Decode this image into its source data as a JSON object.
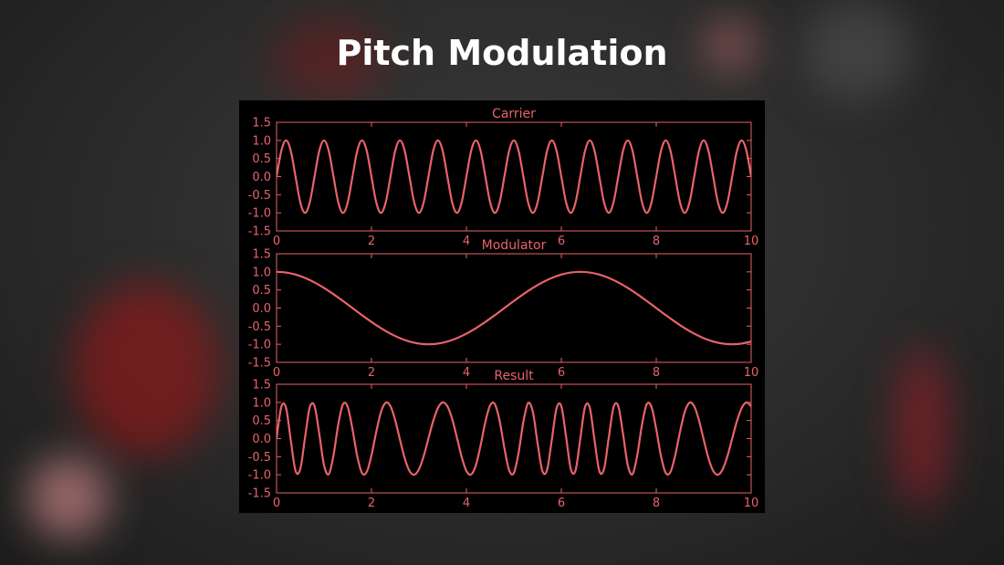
{
  "title": "Pitch Modulation",
  "chart_data": [
    {
      "type": "line",
      "title": "Carrier",
      "x": [
        0,
        0.1,
        0.2,
        0.3,
        0.4,
        0.5,
        0.6,
        0.7,
        0.8,
        0.9,
        1,
        1.1,
        1.2,
        1.3,
        1.4,
        1.5,
        1.6,
        1.7,
        1.8,
        1.9,
        2,
        2.1,
        2.2,
        2.3,
        2.4,
        2.5,
        2.6,
        2.7,
        2.8,
        2.9,
        3,
        3.1,
        3.2,
        3.3,
        3.4,
        3.5,
        3.6,
        3.7,
        3.8,
        3.9,
        4,
        4.1,
        4.2,
        4.3,
        4.4,
        4.5,
        4.6,
        4.7,
        4.8,
        4.9,
        5,
        5.1,
        5.2,
        5.3,
        5.4,
        5.5,
        5.6,
        5.7,
        5.8,
        5.9,
        6,
        6.1,
        6.2,
        6.3,
        6.4,
        6.5,
        6.6,
        6.7,
        6.8,
        6.9,
        7,
        7.1,
        7.2,
        7.3,
        7.4,
        7.5,
        7.6,
        7.7,
        7.8,
        7.9,
        8,
        8.1,
        8.2,
        8.3,
        8.4,
        8.5,
        8.6,
        8.7,
        8.8,
        8.9,
        9,
        9.1,
        9.2,
        9.3,
        9.4,
        9.5,
        9.6,
        9.7,
        9.8,
        9.9,
        10
      ],
      "series": [
        {
          "color": "#e8636a",
          "values": [
            0,
            0.71,
            1,
            0.71,
            0,
            -0.71,
            -1,
            -0.71,
            0,
            0.71,
            1,
            0.71,
            0,
            -0.71,
            -1,
            -0.71,
            0,
            0.71,
            1,
            0.71,
            0,
            -0.71,
            -1,
            -0.71,
            0,
            0.71,
            1,
            0.71,
            0,
            -0.71,
            -1,
            -0.71,
            0,
            0.71,
            1,
            0.71,
            0,
            -0.71,
            -1,
            -0.71,
            0,
            0.71,
            1,
            0.71,
            0,
            -0.71,
            -1,
            -0.71,
            0,
            0.71,
            1,
            0.71,
            0,
            -0.71,
            -1,
            -0.71,
            0,
            0.71,
            1,
            0.71,
            0,
            -0.71,
            -1,
            -0.71,
            0,
            0.71,
            1,
            0.71,
            0,
            -0.71,
            -1,
            -0.71,
            0,
            0.71,
            1,
            0.71,
            0,
            -0.71,
            -1,
            -0.71,
            0,
            0.71,
            1,
            0.71,
            0,
            -0.71,
            -1,
            -0.71,
            0,
            0.71,
            1,
            0.71,
            0,
            -0.71,
            -1,
            -0.71,
            0,
            0.71,
            1,
            0.71,
            0
          ]
        }
      ],
      "xlim": [
        0,
        10
      ],
      "ylim": [
        -1.5,
        1.5
      ],
      "xticks": [
        0,
        2,
        4,
        6,
        8,
        10
      ],
      "yticks": [
        -1.5,
        {
          "value": -1,
          "label": "-1.0"
        },
        -0.5,
        {
          "value": 0,
          "label": "0.0"
        },
        0.5,
        {
          "value": 1,
          "label": "1.0"
        },
        1.5
      ]
    },
    {
      "type": "line",
      "title": "Modulator",
      "x": [
        0,
        0.2,
        0.4,
        0.6,
        0.8,
        1,
        1.2,
        1.4,
        1.6,
        1.8,
        2,
        2.2,
        2.4,
        2.6,
        2.8,
        3,
        3.2,
        3.4,
        3.6,
        3.8,
        4,
        4.2,
        4.4,
        4.6,
        4.8,
        5,
        5.2,
        5.4,
        5.6,
        5.8,
        6,
        6.2,
        6.4,
        6.6,
        6.8,
        7,
        7.2,
        7.4,
        7.6,
        7.8,
        8,
        8.2,
        8.4,
        8.6,
        8.8,
        9,
        9.2,
        9.4,
        9.6,
        9.8,
        10
      ],
      "series": [
        {
          "color": "#e8636a",
          "values": [
            1,
            0.981,
            0.924,
            0.831,
            0.707,
            0.556,
            0.383,
            0.195,
            0,
            -0.195,
            -0.383,
            -0.556,
            -0.707,
            -0.831,
            -0.924,
            -0.981,
            -1,
            -0.981,
            -0.924,
            -0.831,
            -0.707,
            -0.556,
            -0.383,
            -0.195,
            0,
            0.195,
            0.383,
            0.556,
            0.707,
            0.831,
            0.924,
            0.981,
            1,
            0.981,
            0.924,
            0.831,
            0.707,
            0.556,
            0.383,
            0.195,
            0,
            -0.195,
            -0.383,
            -0.556,
            -0.707,
            -0.831,
            -0.924,
            -0.981,
            -1,
            -0.981,
            -0.924
          ]
        }
      ],
      "xlim": [
        0,
        10
      ],
      "ylim": [
        -1.5,
        1.5
      ],
      "xticks": [
        0,
        2,
        4,
        6,
        8,
        10
      ],
      "yticks": [
        -1.5,
        {
          "value": -1,
          "label": "-1.0"
        },
        -0.5,
        {
          "value": 0,
          "label": "0.0"
        },
        0.5,
        {
          "value": 1,
          "label": "1.0"
        },
        1.5
      ]
    },
    {
      "type": "line",
      "title": "Result",
      "x": [
        0,
        0.1,
        0.2,
        0.3,
        0.4,
        0.5,
        0.6,
        0.7,
        0.8,
        0.9,
        1,
        1.1,
        1.2,
        1.3,
        1.4,
        1.5,
        1.6,
        1.7,
        1.8,
        1.9,
        2,
        2.1,
        2.2,
        2.3,
        2.4,
        2.5,
        2.6,
        2.7,
        2.8,
        2.9,
        3,
        3.1,
        3.2,
        3.3,
        3.4,
        3.5,
        3.6,
        3.7,
        3.8,
        3.9,
        4,
        4.1,
        4.2,
        4.3,
        4.4,
        4.5,
        4.6,
        4.7,
        4.8,
        4.9,
        5,
        5.1,
        5.2,
        5.3,
        5.4,
        5.5,
        5.6,
        5.7,
        5.8,
        5.9,
        6,
        6.1,
        6.2,
        6.3,
        6.4,
        6.5,
        6.6,
        6.7,
        6.8,
        6.9,
        7,
        7.1,
        7.2,
        7.3,
        7.4,
        7.5,
        7.6,
        7.7,
        7.8,
        7.9,
        8,
        8.1,
        8.2,
        8.3,
        8.4,
        8.5,
        8.6,
        8.7,
        8.8,
        8.9,
        9,
        9.1,
        9.2,
        9.3,
        9.4,
        9.5,
        9.6,
        9.7,
        9.8,
        9.9,
        10
      ],
      "series": [
        {
          "color": "#e8636a",
          "values": [
            0,
            0.876,
            0.846,
            -0.05,
            -0.892,
            -0.841,
            0.029,
            0.864,
            0.894,
            0.13,
            -0.734,
            -0.983,
            -0.461,
            0.389,
            0.95,
            0.873,
            0.259,
            -0.487,
            -0.95,
            -0.921,
            -0.461,
            0.183,
            0.734,
            0.992,
            0.894,
            0.507,
            -0.029,
            -0.541,
            -0.892,
            -0.999,
            -0.847,
            -0.483,
            0,
            0.482,
            0.846,
            0.999,
            0.892,
            0.542,
            0.03,
            -0.505,
            -0.894,
            -0.992,
            -0.734,
            -0.183,
            0.463,
            0.921,
            0.95,
            0.488,
            -0.259,
            -0.873,
            -0.95,
            -0.389,
            0.463,
            0.983,
            0.734,
            -0.13,
            -0.894,
            -0.864,
            -0.029,
            0.84,
            0.892,
            0.05,
            -0.846,
            -0.877,
            0,
            0.876,
            0.846,
            -0.05,
            -0.892,
            -0.841,
            0.029,
            0.864,
            0.894,
            0.13,
            -0.734,
            -0.983,
            -0.461,
            0.389,
            0.95,
            0.873,
            0.259,
            -0.487,
            -0.95,
            -0.921,
            -0.461,
            0.183,
            0.734,
            0.992,
            0.894,
            0.507,
            -0.029,
            -0.541,
            -0.892,
            -0.999,
            -0.847,
            -0.483,
            0,
            0.482,
            0.846,
            0.999,
            0.892
          ]
        }
      ],
      "xlim": [
        0,
        10
      ],
      "ylim": [
        -1.5,
        1.5
      ],
      "xticks": [
        0,
        2,
        4,
        6,
        8,
        10
      ],
      "yticks": [
        -1.5,
        {
          "value": -1,
          "label": "-1.0"
        },
        -0.5,
        {
          "value": 0,
          "label": "0.0"
        },
        0.5,
        {
          "value": 1,
          "label": "1.0"
        },
        1.5
      ]
    }
  ]
}
